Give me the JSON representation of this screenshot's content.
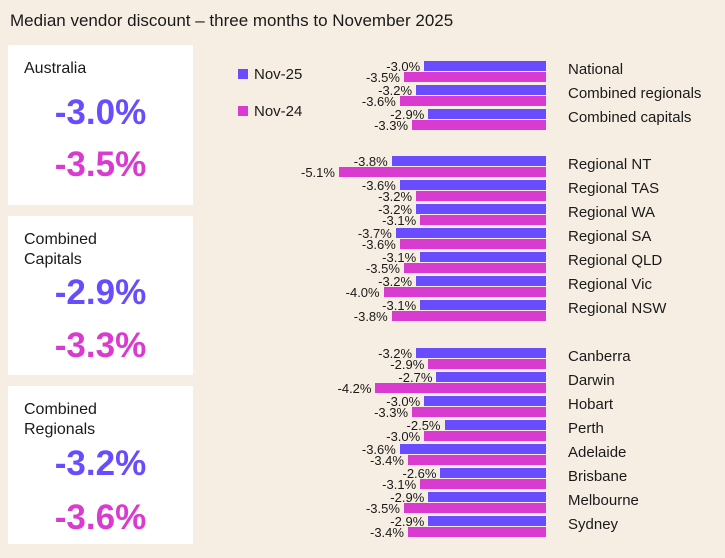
{
  "title": "Median vendor discount – three months to November 2025",
  "cards": [
    {
      "name": "Australia",
      "nov25": "-3.0%",
      "nov24": "-3.5%"
    },
    {
      "name": "Combined\nCapitals",
      "nov25": "-2.9%",
      "nov24": "-3.3%"
    },
    {
      "name": "Combined\nRegionals",
      "nov25": "-3.2%",
      "nov24": "-3.6%"
    }
  ],
  "chart_data": {
    "type": "bar",
    "orientation": "horizontal",
    "colors": {
      "Nov-25": "#6a4cff",
      "Nov-24": "#d93ad0"
    },
    "legend_placement": "top-left",
    "groups": [
      [
        "National",
        "Combined regionals",
        "Combined capitals"
      ],
      [
        "Regional NT",
        "Regional TAS",
        "Regional WA",
        "Regional SA",
        "Regional QLD",
        "Regional Vic",
        "Regional NSW"
      ],
      [
        "Canberra",
        "Darwin",
        "Hobart",
        "Perth",
        "Adelaide",
        "Brisbane",
        "Melbourne",
        "Sydney"
      ]
    ],
    "categories": [
      "National",
      "Combined regionals",
      "Combined capitals",
      "Regional NT",
      "Regional TAS",
      "Regional WA",
      "Regional SA",
      "Regional QLD",
      "Regional Vic",
      "Regional NSW",
      "Canberra",
      "Darwin",
      "Hobart",
      "Perth",
      "Adelaide",
      "Brisbane",
      "Melbourne",
      "Sydney"
    ],
    "series": [
      {
        "name": "Nov-25",
        "values": [
          -3.0,
          -3.2,
          -2.9,
          -3.8,
          -3.6,
          -3.2,
          -3.7,
          -3.1,
          -3.2,
          -3.1,
          -3.2,
          -2.7,
          -3.0,
          -2.5,
          -3.6,
          -2.6,
          -2.9,
          -2.9
        ]
      },
      {
        "name": "Nov-24",
        "values": [
          -3.5,
          -3.6,
          -3.3,
          -5.1,
          -3.2,
          -3.1,
          -3.6,
          -3.5,
          -4.0,
          -3.8,
          -2.9,
          -4.2,
          -3.3,
          -3.0,
          -3.4,
          -3.1,
          -3.5,
          -3.4
        ]
      }
    ],
    "unit": "%"
  }
}
